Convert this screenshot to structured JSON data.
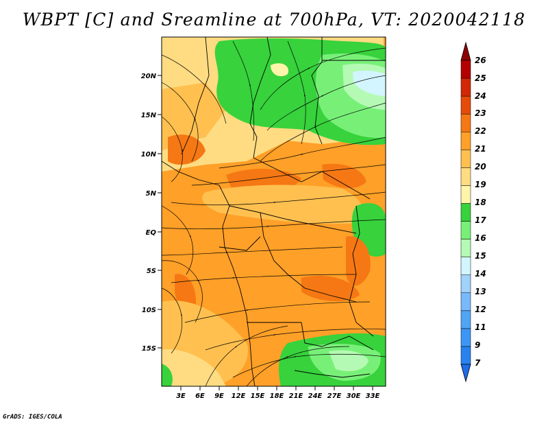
{
  "title": "WBPT [C] and Sreamline at 700hPa, VT: 2020042118",
  "credit": "GrADS: IGES/COLA",
  "lat_labels": [
    "20N",
    "15N",
    "10N",
    "5N",
    "EQ",
    "5S",
    "10S",
    "15S"
  ],
  "lon_labels": [
    "3E",
    "6E",
    "9E",
    "12E",
    "15E",
    "18E",
    "21E",
    "24E",
    "27E",
    "30E",
    "33E"
  ],
  "colorbar": {
    "labels": [
      "7",
      "9",
      "11",
      "12",
      "13",
      "14",
      "15",
      "16",
      "17",
      "18",
      "19",
      "20",
      "21",
      "22",
      "23",
      "24",
      "25",
      "26"
    ],
    "colors": [
      "#1e6ee6",
      "#2882f0",
      "#3c96f5",
      "#50a5f5",
      "#78b9fa",
      "#a0d2fa",
      "#d2f5ff",
      "#b4fab4",
      "#78f078",
      "#37d23c",
      "#fff5aa",
      "#ffdc82",
      "#ffc050",
      "#ffa028",
      "#f57814",
      "#e64b0a",
      "#d22805",
      "#b40000",
      "#8c0000"
    ]
  },
  "colors": {
    "hot": "#f57814",
    "orange": "#ffa028",
    "lightorange": "#ffc050",
    "sand": "#ffdc82",
    "green": "#37d23c",
    "lightgreen": "#78f078",
    "palegreen": "#b4fab4",
    "cyan": "#d2f5ff",
    "streamline": "#000000",
    "border": "#000000"
  }
}
